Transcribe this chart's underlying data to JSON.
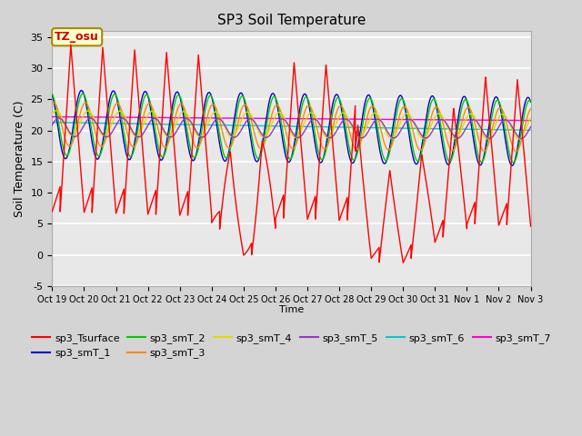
{
  "title": "SP3 Soil Temperature",
  "ylabel": "Soil Temperature (C)",
  "xlabel": "Time",
  "ylim": [
    -5,
    36
  ],
  "xlim": [
    0,
    360
  ],
  "fig_bg": "#d4d4d4",
  "plot_bg": "#e8e8e8",
  "grid_color": "white",
  "tz_label": "TZ_osu",
  "series_colors": {
    "sp3_Tsurface": "#ff0000",
    "sp3_smT_1": "#0000cc",
    "sp3_smT_2": "#00cc00",
    "sp3_smT_3": "#ff8800",
    "sp3_smT_4": "#dddd00",
    "sp3_smT_5": "#9933cc",
    "sp3_smT_6": "#00cccc",
    "sp3_smT_7": "#ff00cc"
  },
  "x_tick_labels": [
    "Oct 19",
    "Oct 20",
    "Oct 21",
    "Oct 22",
    "Oct 23",
    "Oct 24",
    "Oct 25",
    "Oct 26",
    "Oct 27",
    "Oct 28",
    "Oct 29",
    "Oct 30",
    "Oct 31",
    "Nov 1",
    "Nov 2",
    "Nov 3"
  ],
  "x_tick_positions": [
    0,
    24,
    48,
    72,
    96,
    120,
    144,
    168,
    192,
    216,
    240,
    264,
    288,
    312,
    336,
    360
  ],
  "y_ticks": [
    -5,
    0,
    5,
    10,
    15,
    20,
    25,
    30,
    35
  ]
}
